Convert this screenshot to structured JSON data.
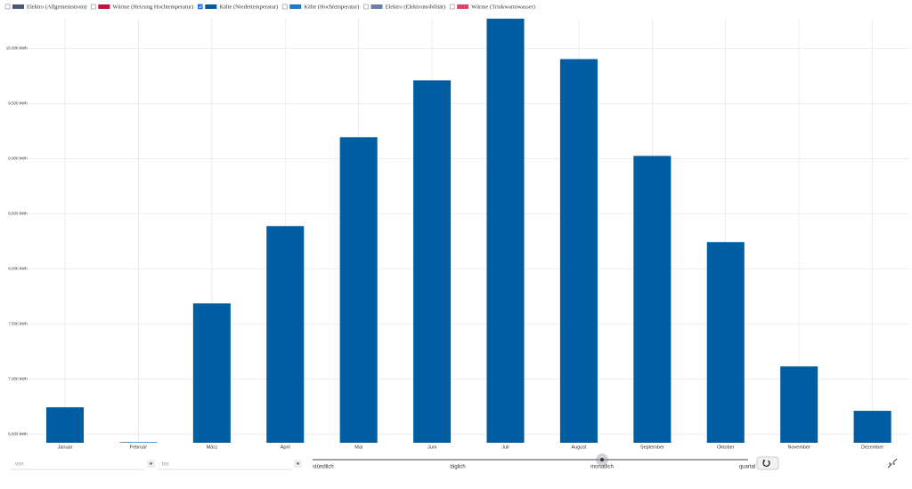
{
  "chart_data": {
    "type": "bar",
    "categories": [
      "Januar",
      "Februar",
      "März",
      "April",
      "Mai",
      "Juni",
      "Juli",
      "August",
      "September",
      "Oktober",
      "November",
      "Dezember"
    ],
    "series": [
      {
        "name": "Elektro (Allgemeinstrom)",
        "color": "#4a5a7a",
        "visible": false
      },
      {
        "name": "Wärme (Heizung Hochtemperatur)",
        "color": "#c0143c",
        "visible": false
      },
      {
        "name": "Kälte (Niedertemperatur)",
        "color": "#005da2",
        "visible": true,
        "values": [
          6742,
          6425,
          7685,
          8387,
          9194,
          9710,
          10270,
          9903,
          9024,
          8242,
          7113,
          6710
        ]
      },
      {
        "name": "Kälte (Hochtemperatur)",
        "color": "#1a7bd0",
        "visible": false
      },
      {
        "name": "Elektro (Elektromobilität)",
        "color": "#6b7fa8",
        "visible": false
      },
      {
        "name": "Wärme (Trinkwarmwasser)",
        "color": "#e0446a",
        "visible": false
      }
    ],
    "ylim": [
      6420,
      10270
    ],
    "yticks": [
      {
        "value": 6500,
        "label": "6.500 kWh"
      },
      {
        "value": 7000,
        "label": "7.000 kWh"
      },
      {
        "value": 7500,
        "label": "7.500 kWh"
      },
      {
        "value": 8000,
        "label": "8.000 kWh"
      },
      {
        "value": 8500,
        "label": "8.500 kWh"
      },
      {
        "value": 9000,
        "label": "9.000 kWh"
      },
      {
        "value": 9500,
        "label": "9.500 kWh"
      },
      {
        "value": 10000,
        "label": "10.000 kWh"
      }
    ],
    "grid": true
  },
  "controls": {
    "from_placeholder": "von",
    "to_placeholder": "bis",
    "resolution_options": [
      "stündlich",
      "täglich",
      "monatlich",
      "quartal"
    ],
    "resolution_selected": 2
  }
}
